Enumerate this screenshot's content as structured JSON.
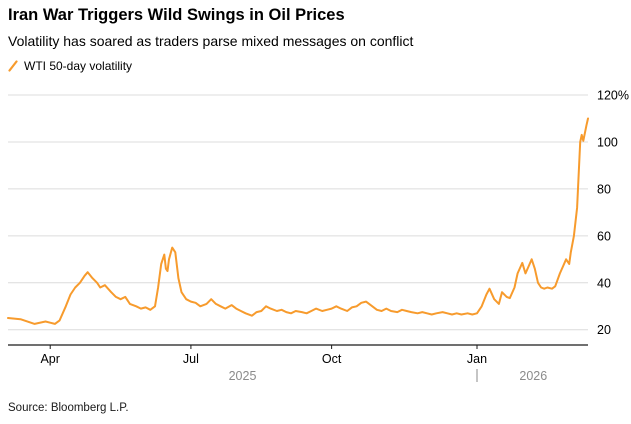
{
  "header": {
    "title": "Iran War Triggers Wild Swings in Oil Prices",
    "subtitle": "Volatility has soared as traders parse mixed messages on conflict"
  },
  "legend": {
    "label": "WTI 50-day volatility"
  },
  "footer": {
    "source": "Source: Bloomberg L.P."
  },
  "colors": {
    "line": "#F79B2D",
    "grid": "#DCDCDC",
    "axis": "#1a1a1a",
    "tick_text": "#000000",
    "year_label": "#8B8B8B"
  },
  "chart_data": {
    "type": "line",
    "title": "Iran War Triggers Wild Swings in Oil Prices",
    "series_name": "WTI 50-day volatility",
    "unit": "%",
    "xlabel": "",
    "ylabel": "",
    "x_is": "days since 2025-03-05",
    "xlim": [
      0,
      371
    ],
    "ylim": [
      13.5,
      123
    ],
    "y_ticks": [
      20,
      40,
      60,
      80,
      100,
      120
    ],
    "y_top_suffix": "%",
    "x_ticks": [
      {
        "pos": 27,
        "label": "Apr"
      },
      {
        "pos": 117,
        "label": "Jul"
      },
      {
        "pos": 207,
        "label": "Oct"
      },
      {
        "pos": 300,
        "label": "Jan"
      }
    ],
    "year_divider_pos": 300,
    "year_labels": [
      {
        "label": "2025",
        "center": 150
      },
      {
        "label": "2026",
        "center": 336
      }
    ],
    "grid": true,
    "legend_position": "top-left",
    "points": [
      [
        0,
        25
      ],
      [
        8,
        24.5
      ],
      [
        17,
        22.5
      ],
      [
        24,
        23.5
      ],
      [
        27,
        23
      ],
      [
        30,
        22.5
      ],
      [
        33,
        24
      ],
      [
        37,
        30
      ],
      [
        40,
        35
      ],
      [
        43,
        38
      ],
      [
        46,
        40
      ],
      [
        49,
        43
      ],
      [
        51,
        44.5
      ],
      [
        54,
        42
      ],
      [
        57,
        40
      ],
      [
        59,
        38
      ],
      [
        62,
        39
      ],
      [
        66,
        36
      ],
      [
        69,
        34
      ],
      [
        72,
        33
      ],
      [
        75,
        34
      ],
      [
        78,
        31
      ],
      [
        82,
        30
      ],
      [
        85,
        29
      ],
      [
        88,
        29.5
      ],
      [
        91,
        28.5
      ],
      [
        94,
        30
      ],
      [
        96,
        38
      ],
      [
        98,
        48
      ],
      [
        100,
        52
      ],
      [
        101,
        46
      ],
      [
        102,
        45
      ],
      [
        103,
        50
      ],
      [
        105,
        55
      ],
      [
        107,
        53
      ],
      [
        109,
        42
      ],
      [
        111,
        36
      ],
      [
        113,
        34
      ],
      [
        114,
        33
      ],
      [
        117,
        32
      ],
      [
        120,
        31.5
      ],
      [
        123,
        30
      ],
      [
        127,
        31
      ],
      [
        130,
        33
      ],
      [
        133,
        31
      ],
      [
        136,
        30
      ],
      [
        139,
        29
      ],
      [
        143,
        30.5
      ],
      [
        146,
        29
      ],
      [
        149,
        28
      ],
      [
        152,
        27
      ],
      [
        156,
        26
      ],
      [
        159,
        27.5
      ],
      [
        162,
        28
      ],
      [
        165,
        30
      ],
      [
        168,
        29
      ],
      [
        172,
        28
      ],
      [
        175,
        28.5
      ],
      [
        178,
        27.5
      ],
      [
        181,
        27
      ],
      [
        184,
        28
      ],
      [
        188,
        27.5
      ],
      [
        191,
        27
      ],
      [
        194,
        28
      ],
      [
        197,
        29
      ],
      [
        201,
        28
      ],
      [
        204,
        28.5
      ],
      [
        207,
        29
      ],
      [
        210,
        30
      ],
      [
        213,
        29
      ],
      [
        217,
        28
      ],
      [
        220,
        29.5
      ],
      [
        223,
        30
      ],
      [
        226,
        31.5
      ],
      [
        229,
        32
      ],
      [
        233,
        30
      ],
      [
        236,
        28.5
      ],
      [
        239,
        28
      ],
      [
        242,
        29
      ],
      [
        245,
        28
      ],
      [
        249,
        27.5
      ],
      [
        252,
        28.5
      ],
      [
        255,
        28
      ],
      [
        258,
        27.5
      ],
      [
        262,
        27
      ],
      [
        265,
        27.5
      ],
      [
        268,
        27
      ],
      [
        271,
        26.5
      ],
      [
        274,
        27
      ],
      [
        278,
        27.5
      ],
      [
        281,
        27
      ],
      [
        284,
        26.5
      ],
      [
        287,
        27
      ],
      [
        290,
        26.5
      ],
      [
        294,
        27
      ],
      [
        297,
        26.5
      ],
      [
        300,
        27
      ],
      [
        303,
        30
      ],
      [
        306,
        35
      ],
      [
        308,
        37.5
      ],
      [
        311,
        33
      ],
      [
        314,
        31
      ],
      [
        316,
        36
      ],
      [
        319,
        34
      ],
      [
        321,
        33.5
      ],
      [
        324,
        38
      ],
      [
        326,
        44
      ],
      [
        329,
        48.5
      ],
      [
        331,
        44
      ],
      [
        333,
        47
      ],
      [
        335,
        50
      ],
      [
        337,
        46
      ],
      [
        339,
        40
      ],
      [
        341,
        38
      ],
      [
        343,
        37.5
      ],
      [
        345,
        38
      ],
      [
        348,
        37.5
      ],
      [
        350,
        38.5
      ],
      [
        353,
        44
      ],
      [
        355,
        47
      ],
      [
        357,
        50
      ],
      [
        359,
        48
      ],
      [
        360,
        53
      ],
      [
        362,
        60
      ],
      [
        364,
        72
      ],
      [
        366,
        100
      ],
      [
        367,
        103
      ],
      [
        368,
        100.5
      ],
      [
        370,
        107
      ],
      [
        371,
        110
      ]
    ]
  }
}
